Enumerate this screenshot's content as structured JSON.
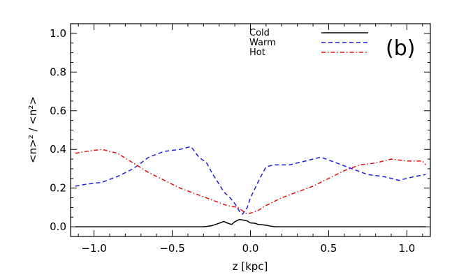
{
  "chart_data": {
    "type": "line",
    "panel_label": "(b)",
    "xlabel": "z [kpc]",
    "ylabel": "<n>² / <n²>",
    "xlim": [
      -1.15,
      1.15
    ],
    "ylim": [
      -0.05,
      1.05
    ],
    "x_ticks": [
      -1.0,
      -0.5,
      0.0,
      0.5,
      1.0
    ],
    "x_tick_labels": [
      "−1.0",
      "−0.5",
      "0.0",
      "0.5",
      "1.0"
    ],
    "y_ticks": [
      0.0,
      0.2,
      0.4,
      0.6,
      0.8,
      1.0
    ],
    "y_tick_labels": [
      "0.0",
      "0.2",
      "0.4",
      "0.6",
      "0.8",
      "1.0"
    ],
    "legend_position": "top-right",
    "series": [
      {
        "name": "Cold",
        "style": "solid",
        "color": "#000000",
        "x": [
          -1.12,
          -0.6,
          -0.3,
          -0.25,
          -0.2,
          -0.17,
          -0.15,
          -0.12,
          -0.1,
          -0.07,
          -0.05,
          -0.02,
          0.0,
          0.03,
          0.05,
          0.08,
          0.1,
          0.13,
          0.16,
          0.3,
          0.6,
          1.12
        ],
        "y": [
          0.0,
          0.0,
          0.0,
          0.005,
          0.018,
          0.028,
          0.02,
          0.012,
          0.026,
          0.038,
          0.035,
          0.03,
          0.02,
          0.018,
          0.012,
          0.01,
          0.008,
          0.003,
          0.0,
          0.0,
          0.0,
          0.0
        ]
      },
      {
        "name": "Warm",
        "style": "dashed",
        "color": "#1f1fd6",
        "x": [
          -1.12,
          -1.05,
          -0.95,
          -0.85,
          -0.75,
          -0.65,
          -0.55,
          -0.45,
          -0.38,
          -0.33,
          -0.28,
          -0.24,
          -0.2,
          -0.17,
          -0.13,
          -0.1,
          -0.07,
          -0.05,
          -0.02,
          0.0,
          0.03,
          0.06,
          0.1,
          0.15,
          0.25,
          0.35,
          0.45,
          0.55,
          0.65,
          0.75,
          0.85,
          0.95,
          1.05,
          1.12
        ],
        "y": [
          0.21,
          0.22,
          0.23,
          0.26,
          0.3,
          0.36,
          0.39,
          0.4,
          0.415,
          0.36,
          0.33,
          0.27,
          0.22,
          0.18,
          0.15,
          0.12,
          0.08,
          0.065,
          0.1,
          0.15,
          0.2,
          0.25,
          0.31,
          0.32,
          0.32,
          0.34,
          0.36,
          0.33,
          0.3,
          0.27,
          0.26,
          0.24,
          0.26,
          0.27
        ]
      },
      {
        "name": "Hot",
        "style": "dashdot",
        "color": "#e01010",
        "x": [
          -1.12,
          -1.05,
          -0.95,
          -0.85,
          -0.75,
          -0.65,
          -0.55,
          -0.45,
          -0.35,
          -0.25,
          -0.15,
          -0.08,
          -0.03,
          0.0,
          0.05,
          0.1,
          0.2,
          0.3,
          0.4,
          0.5,
          0.6,
          0.7,
          0.8,
          0.9,
          1.0,
          1.1,
          1.12
        ],
        "y": [
          0.38,
          0.39,
          0.4,
          0.38,
          0.33,
          0.28,
          0.24,
          0.2,
          0.17,
          0.14,
          0.11,
          0.1,
          0.07,
          0.07,
          0.085,
          0.11,
          0.15,
          0.18,
          0.21,
          0.25,
          0.29,
          0.32,
          0.33,
          0.35,
          0.34,
          0.34,
          0.32
        ]
      }
    ]
  }
}
